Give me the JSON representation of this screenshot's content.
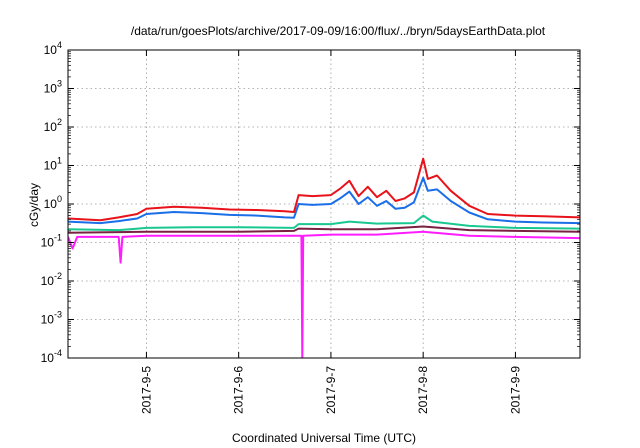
{
  "chart_data": {
    "type": "line",
    "title": "/data/run/goesPlots/archive/2017-09-09/16:00/flux/../bryn/5daysEarthData.plot",
    "xlabel": "Coordinated Universal Time (UTC)",
    "ylabel": "cGy/day",
    "yscale": "log",
    "ylim": [
      0.0001,
      10000
    ],
    "xlim": [
      -0.85,
      4.7
    ],
    "grid": true,
    "legend": "none",
    "y_ticks": [
      {
        "value": 0.0001,
        "base": "10",
        "exp": "-4"
      },
      {
        "value": 0.001,
        "base": "10",
        "exp": "-3"
      },
      {
        "value": 0.01,
        "base": "10",
        "exp": "-2"
      },
      {
        "value": 0.1,
        "base": "10",
        "exp": "-1"
      },
      {
        "value": 1,
        "base": "10",
        "exp": "0"
      },
      {
        "value": 10,
        "base": "10",
        "exp": "1"
      },
      {
        "value": 100,
        "base": "10",
        "exp": "2"
      },
      {
        "value": 1000,
        "base": "10",
        "exp": "3"
      },
      {
        "value": 10000,
        "base": "10",
        "exp": "4"
      }
    ],
    "x_ticks": [
      {
        "value": 0,
        "label": "2017-9-5"
      },
      {
        "value": 1,
        "label": "2017-9-6"
      },
      {
        "value": 2,
        "label": "2017-9-7"
      },
      {
        "value": 3,
        "label": "2017-9-8"
      },
      {
        "value": 4,
        "label": "2017-9-9"
      }
    ],
    "series": [
      {
        "color": "#e8121a",
        "points": [
          [
            -0.85,
            0.42
          ],
          [
            -0.5,
            0.38
          ],
          [
            -0.3,
            0.45
          ],
          [
            -0.1,
            0.55
          ],
          [
            0.0,
            0.75
          ],
          [
            0.3,
            0.85
          ],
          [
            0.6,
            0.8
          ],
          [
            0.9,
            0.72
          ],
          [
            1.2,
            0.7
          ],
          [
            1.5,
            0.65
          ],
          [
            1.6,
            0.62
          ],
          [
            1.65,
            1.7
          ],
          [
            1.8,
            1.6
          ],
          [
            2.0,
            1.7
          ],
          [
            2.1,
            2.5
          ],
          [
            2.2,
            4.0
          ],
          [
            2.3,
            1.6
          ],
          [
            2.4,
            2.8
          ],
          [
            2.5,
            1.5
          ],
          [
            2.6,
            2.2
          ],
          [
            2.7,
            1.2
          ],
          [
            2.8,
            1.4
          ],
          [
            2.9,
            2.0
          ],
          [
            3.0,
            15.0
          ],
          [
            3.05,
            4.5
          ],
          [
            3.15,
            5.5
          ],
          [
            3.3,
            2.2
          ],
          [
            3.5,
            0.9
          ],
          [
            3.7,
            0.55
          ],
          [
            4.0,
            0.5
          ],
          [
            4.3,
            0.48
          ],
          [
            4.7,
            0.45
          ]
        ]
      },
      {
        "color": "#1a6fe8",
        "points": [
          [
            -0.85,
            0.35
          ],
          [
            -0.5,
            0.32
          ],
          [
            -0.3,
            0.36
          ],
          [
            -0.1,
            0.42
          ],
          [
            0.0,
            0.55
          ],
          [
            0.3,
            0.62
          ],
          [
            0.6,
            0.58
          ],
          [
            0.9,
            0.52
          ],
          [
            1.2,
            0.5
          ],
          [
            1.5,
            0.45
          ],
          [
            1.6,
            0.44
          ],
          [
            1.65,
            1.0
          ],
          [
            1.8,
            0.95
          ],
          [
            2.0,
            1.0
          ],
          [
            2.1,
            1.4
          ],
          [
            2.2,
            2.1
          ],
          [
            2.3,
            1.0
          ],
          [
            2.4,
            1.5
          ],
          [
            2.5,
            0.9
          ],
          [
            2.6,
            1.2
          ],
          [
            2.7,
            0.75
          ],
          [
            2.8,
            0.8
          ],
          [
            2.9,
            1.1
          ],
          [
            3.0,
            4.8
          ],
          [
            3.05,
            2.2
          ],
          [
            3.15,
            2.4
          ],
          [
            3.3,
            1.2
          ],
          [
            3.5,
            0.6
          ],
          [
            3.7,
            0.4
          ],
          [
            4.0,
            0.35
          ],
          [
            4.3,
            0.33
          ],
          [
            4.7,
            0.32
          ]
        ]
      },
      {
        "color": "#18c890",
        "points": [
          [
            -0.85,
            0.22
          ],
          [
            -0.3,
            0.21
          ],
          [
            0.0,
            0.24
          ],
          [
            0.5,
            0.25
          ],
          [
            1.0,
            0.25
          ],
          [
            1.6,
            0.24
          ],
          [
            1.65,
            0.3
          ],
          [
            2.0,
            0.3
          ],
          [
            2.2,
            0.35
          ],
          [
            2.5,
            0.31
          ],
          [
            2.9,
            0.32
          ],
          [
            3.0,
            0.5
          ],
          [
            3.1,
            0.35
          ],
          [
            3.5,
            0.27
          ],
          [
            4.0,
            0.24
          ],
          [
            4.7,
            0.23
          ]
        ]
      },
      {
        "color": "#7a2040",
        "points": [
          [
            -0.85,
            0.18
          ],
          [
            0.0,
            0.19
          ],
          [
            1.0,
            0.19
          ],
          [
            1.6,
            0.2
          ],
          [
            1.65,
            0.23
          ],
          [
            2.0,
            0.22
          ],
          [
            2.5,
            0.22
          ],
          [
            3.0,
            0.26
          ],
          [
            3.5,
            0.21
          ],
          [
            4.0,
            0.2
          ],
          [
            4.7,
            0.19
          ]
        ]
      },
      {
        "color": "#ff1cff",
        "points": [
          [
            -0.85,
            0.14
          ],
          [
            -0.8,
            0.07
          ],
          [
            -0.75,
            0.14
          ],
          [
            -0.3,
            0.14
          ],
          [
            -0.28,
            0.03
          ],
          [
            -0.26,
            0.14
          ],
          [
            0.0,
            0.15
          ],
          [
            1.0,
            0.15
          ],
          [
            1.6,
            0.15
          ],
          [
            1.68,
            0.15
          ],
          [
            1.69,
            0.0001
          ],
          [
            1.7,
            0.15
          ],
          [
            2.0,
            0.16
          ],
          [
            2.5,
            0.16
          ],
          [
            3.0,
            0.19
          ],
          [
            3.5,
            0.15
          ],
          [
            4.0,
            0.14
          ],
          [
            4.7,
            0.13
          ]
        ]
      }
    ]
  }
}
